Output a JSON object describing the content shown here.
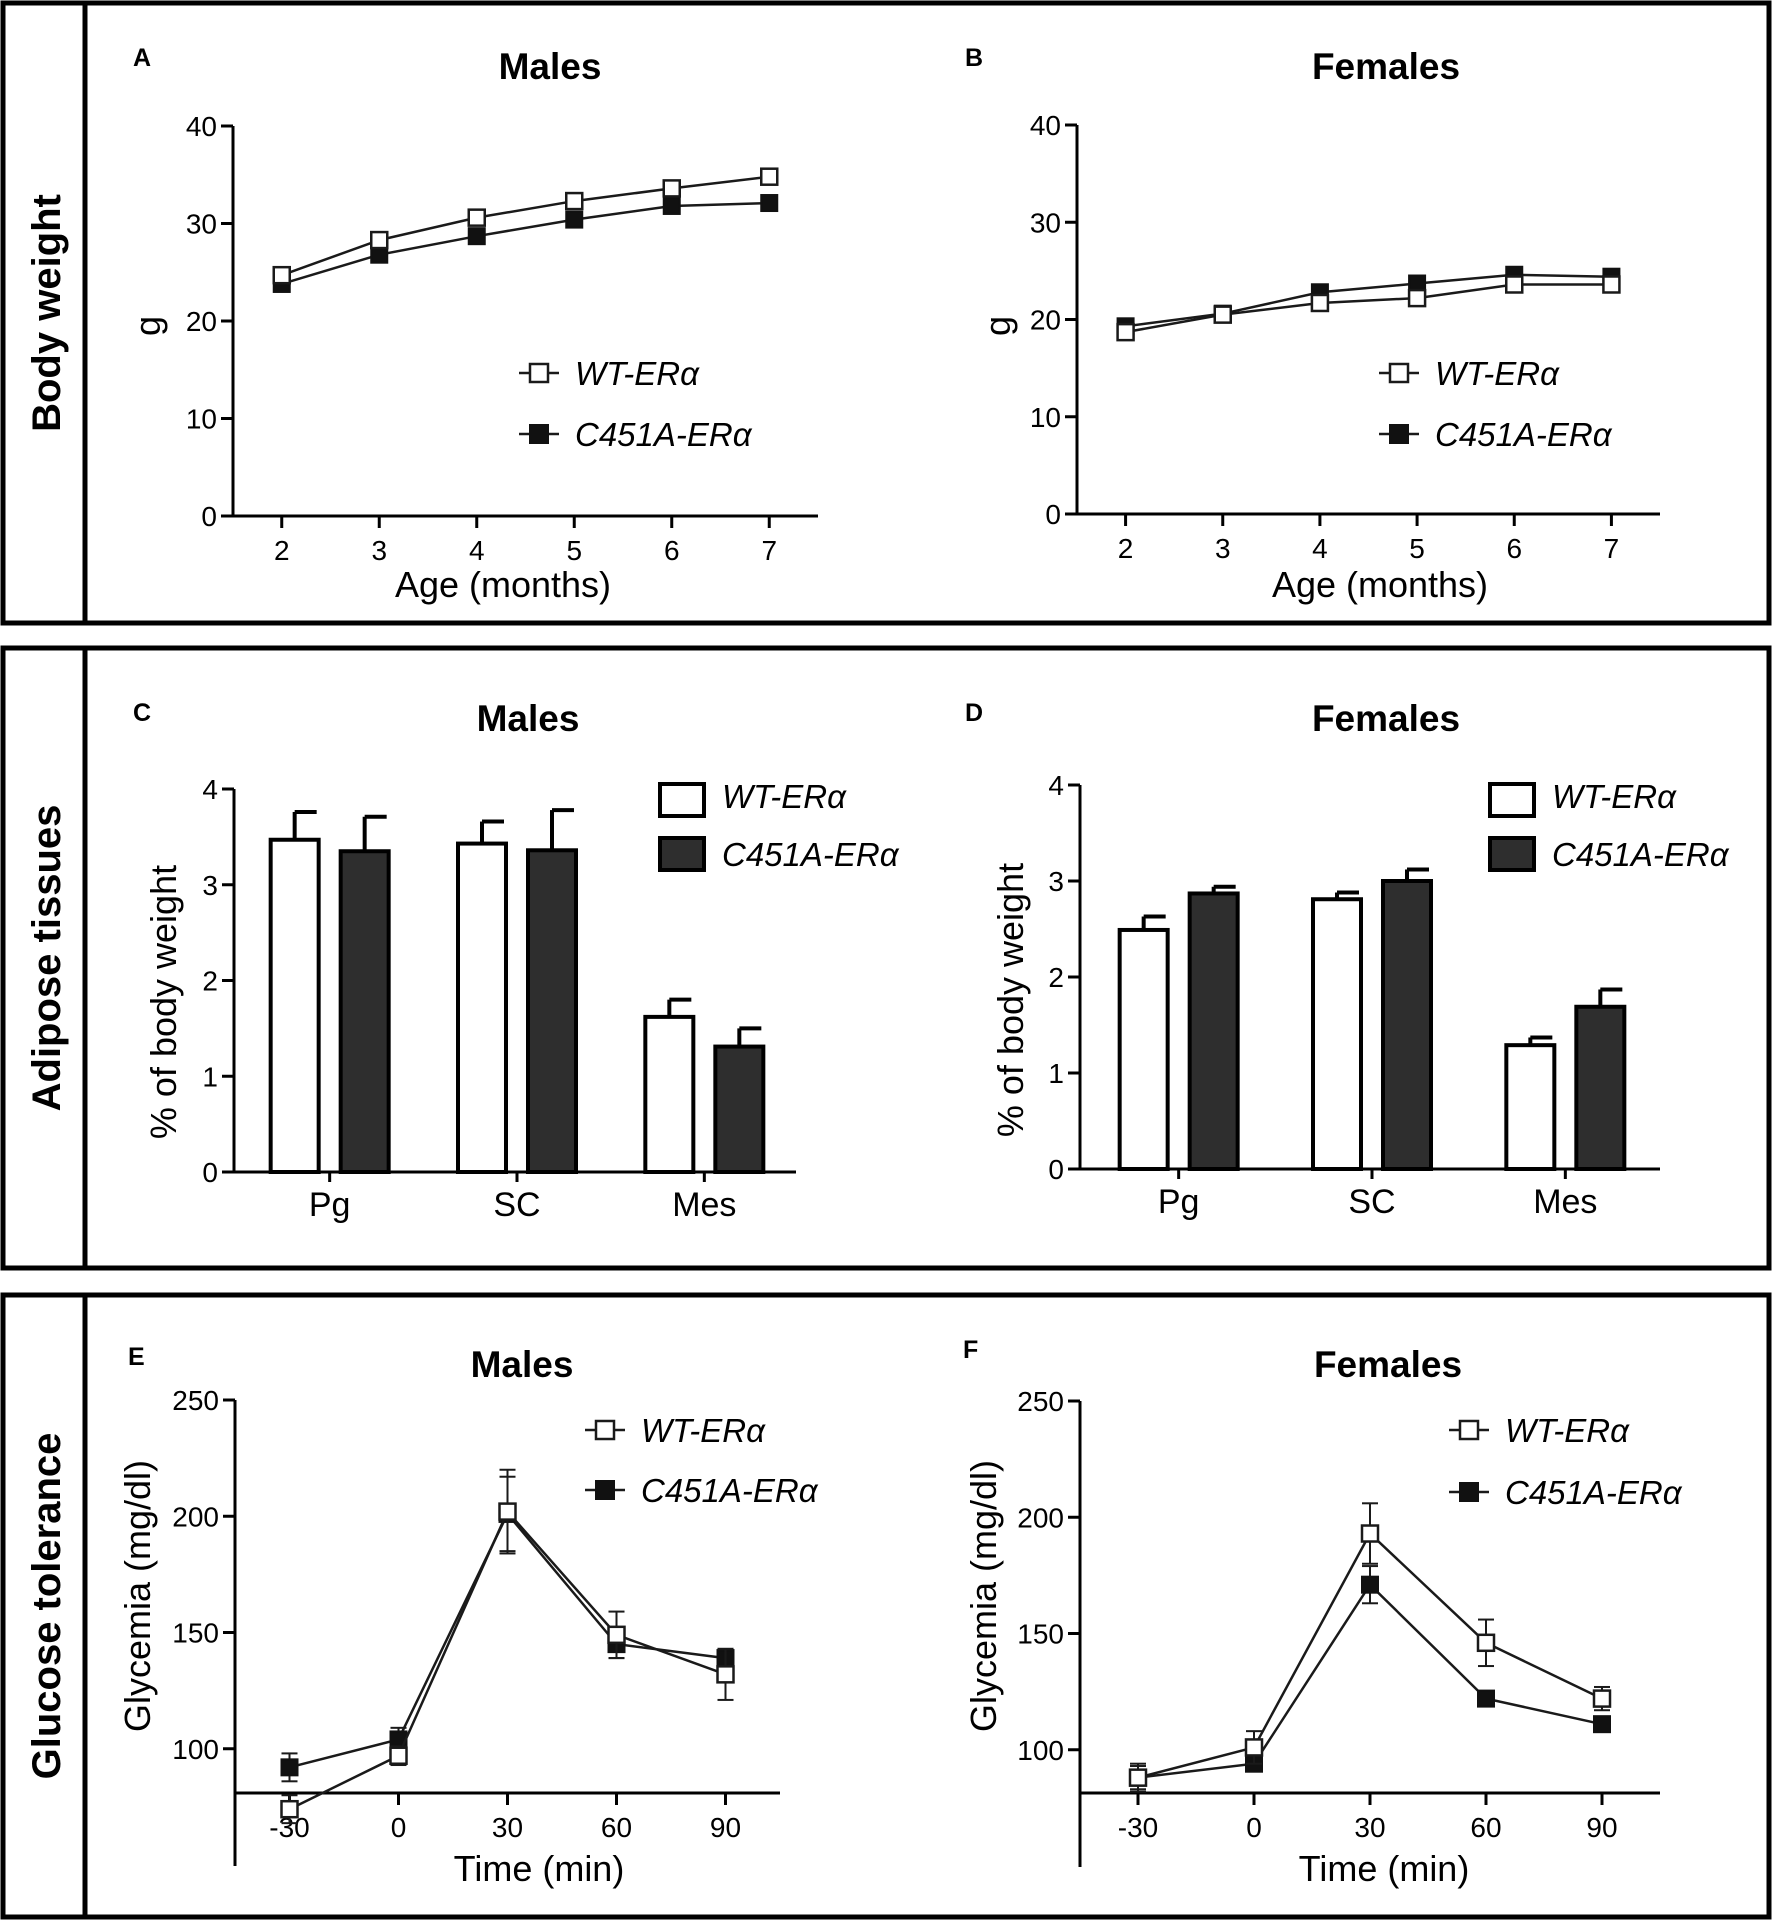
{
  "colors": {
    "wt_fill": "#ffffff",
    "c451a_fill": "#2e2e2e",
    "line": "#1a1a1a",
    "frame": "#000000"
  },
  "rows": [
    {
      "label": "Body weight"
    },
    {
      "label": "Adipose tissues"
    },
    {
      "label": "Glucose tolerance"
    }
  ],
  "legend": {
    "wt": "WT-ERα",
    "c451a": "C451A-ERα"
  },
  "chart_data": [
    {
      "panel": "A",
      "type": "line",
      "title": "Males",
      "xlabel": "Age (months)",
      "ylabel": "g",
      "x": [
        2,
        3,
        4,
        5,
        6,
        7
      ],
      "xlim": [
        1.5,
        7.5
      ],
      "ylim": [
        0,
        40
      ],
      "yticks": [
        0,
        10,
        20,
        30,
        40
      ],
      "series": [
        {
          "name": "WT-ERα",
          "values": [
            24.7,
            28.3,
            30.6,
            32.3,
            33.6,
            34.8
          ]
        },
        {
          "name": "C451A-ERα",
          "values": [
            23.8,
            26.8,
            28.7,
            30.4,
            31.8,
            32.1
          ]
        }
      ]
    },
    {
      "panel": "B",
      "type": "line",
      "title": "Females",
      "xlabel": "Age (months)",
      "ylabel": "g",
      "x": [
        2,
        3,
        4,
        5,
        6,
        7
      ],
      "xlim": [
        1.5,
        7.5
      ],
      "ylim": [
        0,
        40
      ],
      "yticks": [
        0,
        10,
        20,
        30,
        40
      ],
      "series": [
        {
          "name": "WT-ERα",
          "values": [
            18.7,
            20.5,
            21.7,
            22.2,
            23.6,
            23.6
          ]
        },
        {
          "name": "C451A-ERα",
          "values": [
            19.3,
            20.6,
            22.8,
            23.7,
            24.6,
            24.4
          ]
        }
      ]
    },
    {
      "panel": "C",
      "type": "bar",
      "title": "Males",
      "ylabel": "% of body weight",
      "categories": [
        "Pg",
        "SC",
        "Mes"
      ],
      "ylim": [
        0,
        4
      ],
      "yticks": [
        0,
        1,
        2,
        3,
        4
      ],
      "series": [
        {
          "name": "WT-ERα",
          "values": [
            3.47,
            3.43,
            1.62
          ],
          "errors": [
            0.29,
            0.23,
            0.18
          ]
        },
        {
          "name": "C451A-ERα",
          "values": [
            3.35,
            3.36,
            1.31
          ],
          "errors": [
            0.36,
            0.42,
            0.19
          ]
        }
      ]
    },
    {
      "panel": "D",
      "type": "bar",
      "title": "Females",
      "ylabel": "% of body weight",
      "categories": [
        "Pg",
        "SC",
        "Mes"
      ],
      "ylim": [
        0,
        4
      ],
      "yticks": [
        0,
        1,
        2,
        3,
        4
      ],
      "series": [
        {
          "name": "WT-ERα",
          "values": [
            2.49,
            2.81,
            1.29
          ],
          "errors": [
            0.14,
            0.07,
            0.08
          ]
        },
        {
          "name": "C451A-ERα",
          "values": [
            2.87,
            3.0,
            1.69
          ],
          "errors": [
            0.07,
            0.12,
            0.18
          ]
        }
      ]
    },
    {
      "panel": "E",
      "type": "line",
      "title": "Males",
      "xlabel": "Time (min)",
      "ylabel": "Glycemia (mg/dl)",
      "x": [
        -30,
        0,
        30,
        60,
        90
      ],
      "xlim": [
        -45,
        105
      ],
      "ylim": [
        50,
        250
      ],
      "yticks": [
        100,
        150,
        200,
        250
      ],
      "series": [
        {
          "name": "WT-ERα",
          "values": [
            74,
            97,
            202,
            149,
            132
          ],
          "errors": [
            6,
            4,
            18,
            10,
            11
          ]
        },
        {
          "name": "C451A-ERα",
          "values": [
            92,
            104,
            201,
            145,
            139
          ],
          "errors": [
            6,
            5,
            16,
            6,
            3
          ]
        }
      ]
    },
    {
      "panel": "F",
      "type": "line",
      "title": "Females",
      "xlabel": "Time (min)",
      "ylabel": "Glycemia (mg/dl)",
      "x": [
        -30,
        0,
        30,
        60,
        90
      ],
      "xlim": [
        -45,
        105
      ],
      "ylim": [
        50,
        250
      ],
      "yticks": [
        100,
        150,
        200,
        250
      ],
      "series": [
        {
          "name": "WT-ERα",
          "values": [
            88,
            101,
            193,
            146,
            122
          ],
          "errors": [
            5,
            7,
            13,
            10,
            5
          ]
        },
        {
          "name": "C451A-ERα",
          "values": [
            88,
            94,
            171,
            122,
            111
          ],
          "errors": [
            6,
            3,
            8,
            3,
            3
          ]
        }
      ]
    }
  ]
}
